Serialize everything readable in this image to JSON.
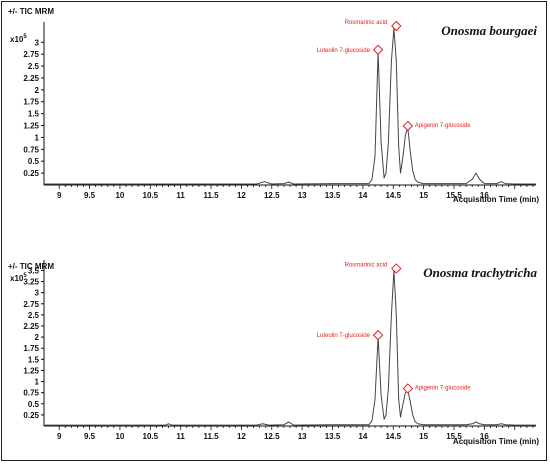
{
  "chart_data": [
    {
      "type": "line",
      "title": "Onosma bourgaei",
      "ylabel": "+/- TIC MRM",
      "y_multiplier": "x10",
      "y_exponent": "5",
      "xlabel": "Acquisition Time (min)",
      "xlim": [
        8.75,
        16.85
      ],
      "ylim": [
        0,
        3.3
      ],
      "x_ticks": [
        "9",
        "9.5",
        "10",
        "10.5",
        "11",
        "11.5",
        "12",
        "12.5",
        "13",
        "13.5",
        "14",
        "14.5",
        "15",
        "15.5",
        "16"
      ],
      "y_ticks": [
        "0.25",
        "0.5",
        "0.75",
        "1",
        "1.25",
        "1.5",
        "1.75",
        "2",
        "2.25",
        "2.5",
        "2.75",
        "3"
      ],
      "grid": false,
      "series": [
        {
          "x": [
            8.75,
            12.25,
            12.38,
            12.5,
            12.7,
            12.78,
            12.86,
            13.5,
            14.1,
            14.15,
            14.2,
            14.25,
            14.3,
            14.35,
            14.38,
            14.42,
            14.47,
            14.51,
            14.55,
            14.59,
            14.62,
            14.66,
            14.7,
            14.74,
            14.78,
            14.82,
            14.86,
            14.9,
            15.0,
            15.7,
            15.8,
            15.86,
            15.92,
            16.0,
            16.2,
            16.28,
            16.35,
            16.5,
            16.85
          ],
          "y": [
            0.02,
            0.02,
            0.07,
            0.02,
            0.03,
            0.06,
            0.02,
            0.03,
            0.03,
            0.12,
            0.6,
            2.8,
            0.9,
            0.15,
            0.25,
            0.9,
            2.6,
            3.3,
            2.6,
            0.8,
            0.25,
            0.6,
            1.05,
            1.2,
            0.7,
            0.3,
            0.12,
            0.06,
            0.03,
            0.03,
            0.12,
            0.25,
            0.12,
            0.03,
            0.03,
            0.07,
            0.03,
            0.02,
            0.02
          ]
        }
      ],
      "annotations": [
        {
          "label": "Rosmarinic acid",
          "x": 14.55,
          "y": 3.3
        },
        {
          "label": "Luteolin 7-glucoside",
          "x": 14.25,
          "y": 2.8
        },
        {
          "label": "Apigenin 7-glucoside",
          "x": 14.74,
          "y": 1.2
        }
      ]
    },
    {
      "type": "line",
      "title": "Onosma trachytricha",
      "ylabel": "+/- TIC MRM",
      "y_multiplier": "x10",
      "y_exponent": "5",
      "xlabel": "Acquisition Time (min)",
      "xlim": [
        8.75,
        16.85
      ],
      "ylim": [
        0,
        3.6
      ],
      "x_ticks": [
        "9",
        "9.5",
        "10",
        "10.5",
        "11",
        "11.5",
        "12",
        "12.5",
        "13",
        "13.5",
        "14",
        "14.5",
        "15",
        "15.5",
        "16"
      ],
      "y_ticks": [
        "0.25",
        "0.5",
        "0.75",
        "1",
        "1.25",
        "1.5",
        "1.75",
        "2",
        "2.25",
        "2.5",
        "2.75",
        "3",
        "3.25",
        "3.5"
      ],
      "grid": false,
      "series": [
        {
          "x": [
            8.75,
            10.75,
            10.8,
            10.85,
            12.25,
            12.35,
            12.45,
            12.7,
            12.78,
            12.86,
            13.5,
            14.1,
            14.15,
            14.2,
            14.25,
            14.3,
            14.35,
            14.38,
            14.42,
            14.47,
            14.51,
            14.55,
            14.59,
            14.62,
            14.66,
            14.7,
            14.74,
            14.78,
            14.82,
            14.86,
            14.9,
            15.0,
            15.7,
            15.8,
            15.86,
            15.92,
            16.0,
            16.2,
            16.28,
            16.35,
            16.5,
            16.85
          ],
          "y": [
            0.02,
            0.02,
            0.05,
            0.02,
            0.02,
            0.05,
            0.02,
            0.03,
            0.09,
            0.02,
            0.03,
            0.03,
            0.12,
            0.6,
            2.0,
            0.7,
            0.15,
            0.25,
            0.85,
            2.5,
            3.5,
            2.5,
            0.6,
            0.2,
            0.5,
            0.75,
            0.8,
            0.55,
            0.25,
            0.1,
            0.05,
            0.03,
            0.03,
            0.05,
            0.09,
            0.05,
            0.03,
            0.03,
            0.05,
            0.03,
            0.02,
            0.02
          ]
        }
      ],
      "annotations": [
        {
          "label": "Rosmarinic acid",
          "x": 14.55,
          "y": 3.5
        },
        {
          "label": "Luteolin 7-glucoside",
          "x": 14.25,
          "y": 2.0
        },
        {
          "label": "Apigenin 7-glucoside",
          "x": 14.74,
          "y": 0.8
        }
      ]
    }
  ]
}
